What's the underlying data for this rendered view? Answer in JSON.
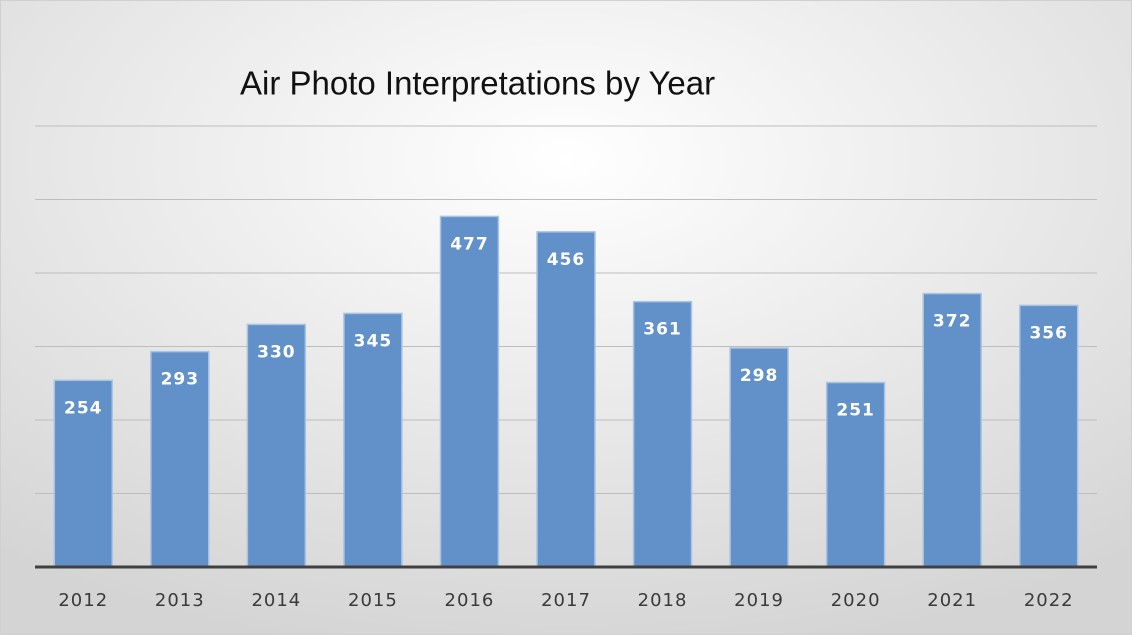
{
  "chart_data": {
    "type": "bar",
    "title": "Air Photo Interpretations by Year",
    "categories": [
      "2012",
      "2013",
      "2014",
      "2015",
      "2016",
      "2017",
      "2018",
      "2019",
      "2020",
      "2021",
      "2022"
    ],
    "values": [
      254,
      293,
      330,
      345,
      477,
      456,
      361,
      298,
      251,
      372,
      356
    ],
    "color": "#6191c8",
    "ylim": [
      0,
      600
    ],
    "yticks": [
      0,
      100,
      200,
      300,
      400,
      500,
      600
    ],
    "grid": true
  }
}
